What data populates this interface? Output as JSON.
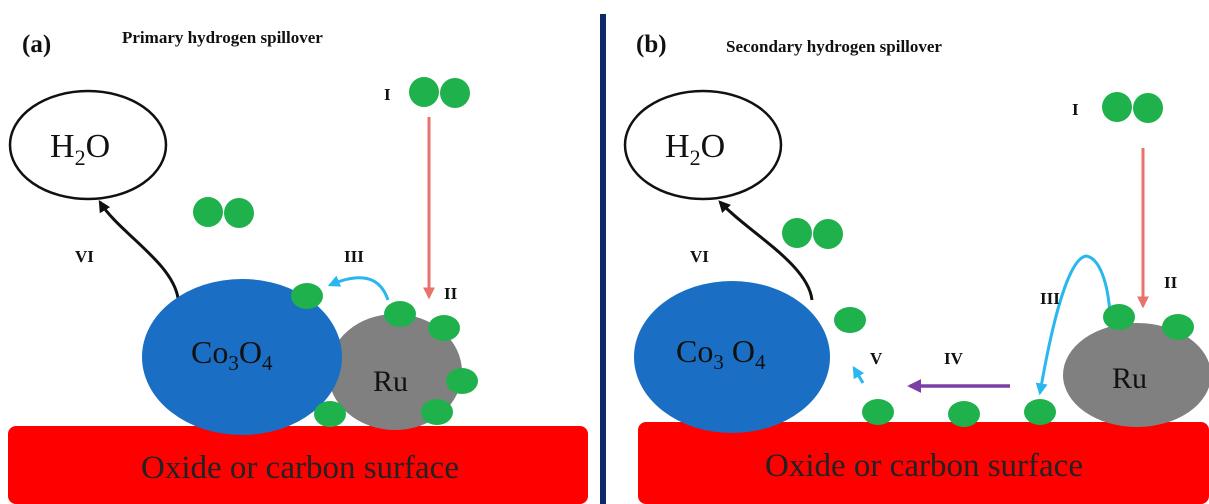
{
  "colors": {
    "surface": "#ff0000",
    "co3o4": "#1a6fc4",
    "ru": "#808080",
    "hydrogen": "#1fb14c",
    "divider": "#0d2a66",
    "arrow_adsorb": "#e8736c",
    "arrow_spill": "#29b7ef",
    "arrow_migrate": "#7d3fa6",
    "arrow_desorb": "#111111"
  },
  "panels": {
    "a": {
      "tag": "(a)",
      "title": "Primary hydrogen spillover",
      "water": {
        "main": "H",
        "sub": "2",
        "tail": "O"
      },
      "co3o4": {
        "a": "Co",
        "a_sub": "3",
        "b": "O",
        "b_sub": "4"
      },
      "ru": "Ru",
      "surface": "Oxide or carbon surface",
      "steps": {
        "I": "I",
        "II": "II",
        "III": "III",
        "VI": "VI"
      }
    },
    "b": {
      "tag": "(b)",
      "title": "Secondary hydrogen spillover",
      "water": {
        "main": "H",
        "sub": "2",
        "tail": "O"
      },
      "co3o4": {
        "a": "Co",
        "a_sub": "3",
        "b": "O",
        "b_sub": "4"
      },
      "ru": "Ru",
      "surface": "Oxide or carbon surface",
      "steps": {
        "I": "I",
        "II": "II",
        "III": "III",
        "IV": "IV",
        "V": "V",
        "VI": "VI"
      }
    }
  }
}
